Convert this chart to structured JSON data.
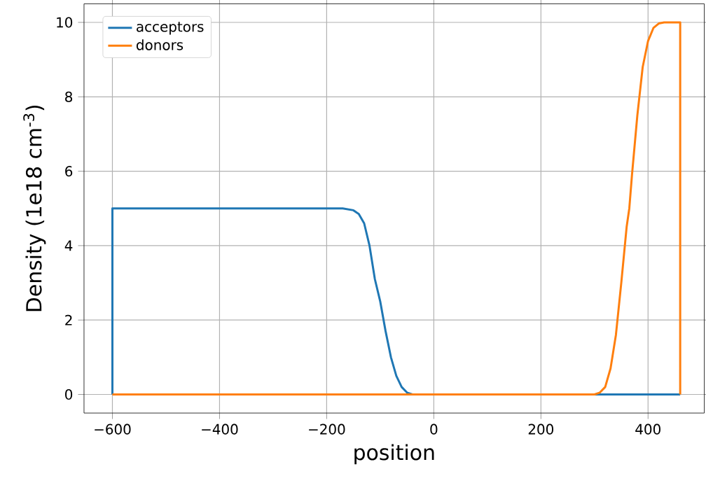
{
  "chart_data": {
    "type": "line",
    "xlabel": "position",
    "ylabel": "Density (1e18 cm$^{-3}$)",
    "series": [
      {
        "name": "acceptors",
        "color": "#1f77b4",
        "x": [
          -600,
          -600,
          -170,
          -150,
          -140,
          -130,
          -120,
          -110,
          -100,
          -90,
          -80,
          -70,
          -60,
          -50,
          -40,
          460
        ],
        "values": [
          0,
          5,
          5,
          4.95,
          4.85,
          4.6,
          4.0,
          3.1,
          2.5,
          1.7,
          1.0,
          0.5,
          0.2,
          0.05,
          0,
          0
        ]
      },
      {
        "name": "donors",
        "color": "#ff7f0e",
        "x": [
          -600,
          300,
          310,
          320,
          330,
          340,
          350,
          360,
          365,
          370,
          380,
          390,
          400,
          410,
          420,
          430,
          460,
          460
        ],
        "values": [
          0,
          0,
          0.05,
          0.2,
          0.7,
          1.6,
          3.0,
          4.5,
          5.0,
          5.9,
          7.5,
          8.8,
          9.5,
          9.85,
          9.97,
          10,
          10,
          0
        ]
      }
    ],
    "xlim": [
      -653,
      505
    ],
    "ylim": [
      -0.5,
      10.5
    ],
    "xticks": [
      {
        "value": -600,
        "label": "−600"
      },
      {
        "value": -400,
        "label": "−400"
      },
      {
        "value": -200,
        "label": "−200"
      },
      0,
      200,
      400
    ],
    "yticks": [
      0,
      2,
      4,
      6,
      8,
      10
    ],
    "grid": true,
    "legend": "top left",
    "line_style": "solid",
    "marker": "none"
  }
}
